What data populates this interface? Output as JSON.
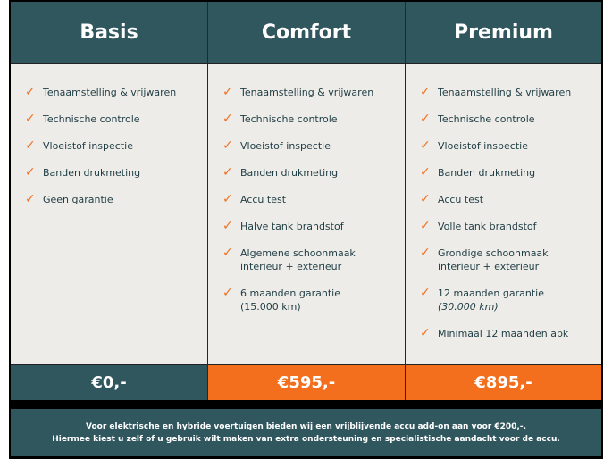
{
  "colors": {
    "header": "#30565e",
    "body": "#eeece8",
    "accent": "#f36f1d"
  },
  "plans": [
    {
      "name": "Basis",
      "price": "€0,-",
      "price_bg": "#30565e",
      "features": [
        "Tenaamstelling & vrijwaren",
        "Technische controle",
        "Vloeistof inspectie",
        "Banden drukmeting",
        "Geen garantie"
      ]
    },
    {
      "name": "Comfort",
      "price": "€595,-",
      "price_bg": "#f36f1d",
      "features": [
        "Tenaamstelling & vrijwaren",
        "Technische controle",
        "Vloeistof inspectie",
        "Banden drukmeting",
        "Accu test",
        "Halve tank brandstof",
        "Algemene schoonmaak interieur + exterieur",
        "6 maanden garantie",
        "(15.000 km)"
      ]
    },
    {
      "name": "Premium",
      "price": "€895,-",
      "price_bg": "#f36f1d",
      "features": [
        "Tenaamstelling & vrijwaren",
        "Technische controle",
        "Vloeistof inspectie",
        "Banden drukmeting",
        "Accu test",
        "Volle tank brandstof",
        "Grondige schoonmaak interieur + exterieur",
        "12 maanden garantie",
        "(30.000 km)",
        "Minimaal 12 maanden apk"
      ]
    }
  ],
  "footer": {
    "line1": "Voor elektrische en hybride voertuigen bieden wij een vrijblijvende accu add-on aan voor €200,-.",
    "line2": "Hiermee kiest u zelf of u gebruik wilt maken van extra ondersteuning en specialistische aandacht voor de accu."
  }
}
